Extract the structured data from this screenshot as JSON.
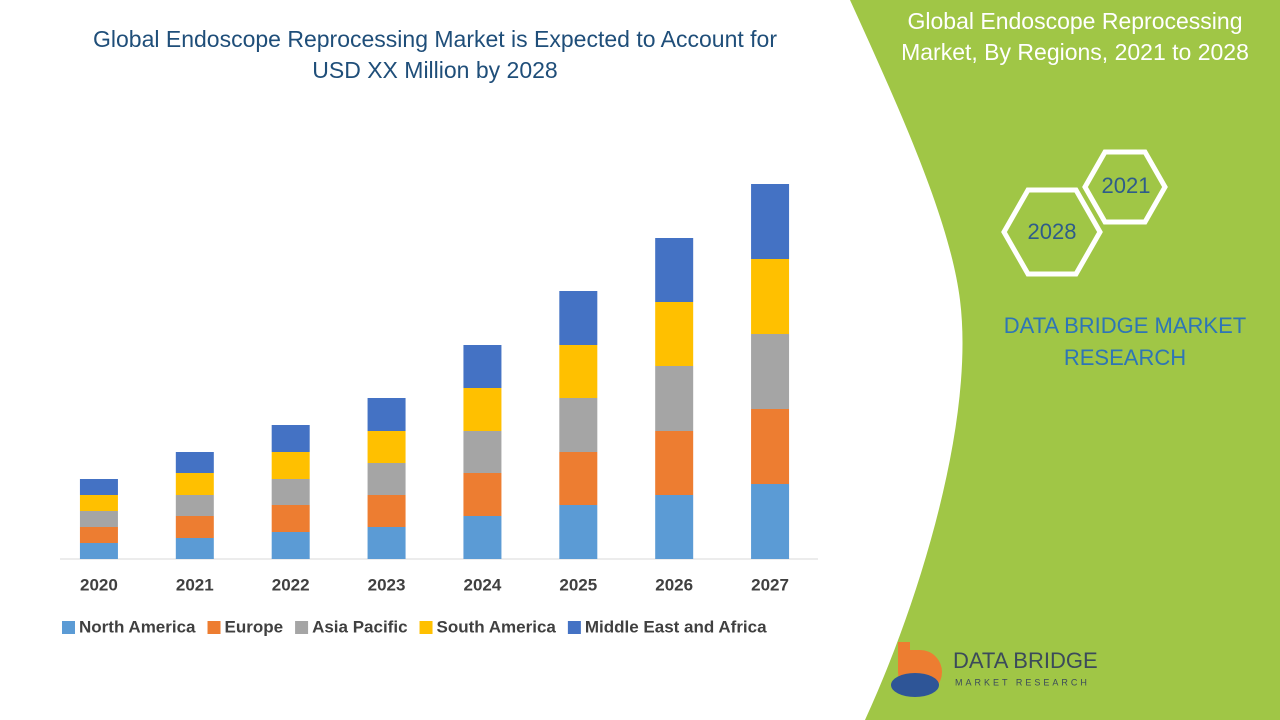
{
  "chart_data": {
    "type": "stacked_bar",
    "title": "Global Endoscope Reprocessing Market is Expected to Account for USD XX Million by 2028",
    "categories": [
      "2020",
      "2021",
      "2022",
      "2023",
      "2024",
      "2025",
      "2026",
      "2027"
    ],
    "series": [
      {
        "name": "North America",
        "color": "#5b9bd5",
        "values": [
          16,
          21,
          27,
          32,
          43,
          54,
          64,
          75
        ]
      },
      {
        "name": "Europe",
        "color": "#ed7d31",
        "values": [
          16,
          22,
          27,
          32,
          43,
          53,
          64,
          75
        ]
      },
      {
        "name": "Asia Pacific",
        "color": "#a5a5a5",
        "values": [
          16,
          21,
          26,
          32,
          42,
          54,
          65,
          75
        ]
      },
      {
        "name": "South America",
        "color": "#ffc000",
        "values": [
          16,
          22,
          27,
          32,
          43,
          53,
          64,
          75
        ]
      },
      {
        "name": "Middle East and Africa",
        "color": "#4472c4",
        "values": [
          16,
          21,
          27,
          33,
          43,
          54,
          64,
          75
        ]
      }
    ],
    "ylim": [
      0,
      400
    ],
    "grid": false,
    "legend": "bottom"
  },
  "sidebar": {
    "title": "Global Endoscope Reprocessing Market, By Regions, 2021 to 2028",
    "hex_labels": [
      "2021",
      "2028"
    ],
    "brand": "DATA BRIDGE MARKET RESEARCH"
  },
  "logo": {
    "name": "DATA BRIDGE",
    "tagline": "MARKET RESEARCH"
  }
}
